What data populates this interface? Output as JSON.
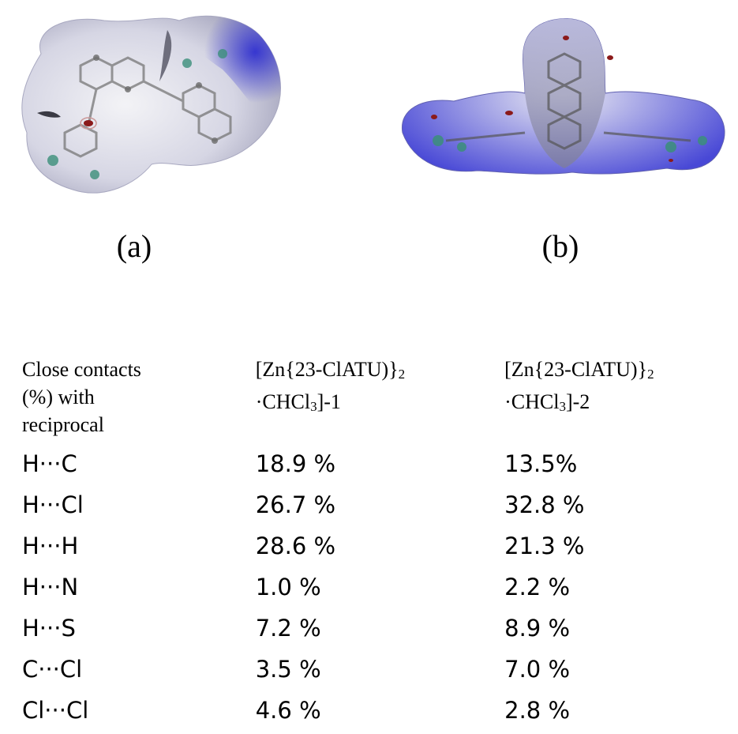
{
  "figures": [
    {
      "caption": "(a)"
    },
    {
      "caption": "(b)"
    }
  ],
  "table": {
    "header": {
      "label_lines": [
        "Close contacts",
        "(%) with",
        "reciprocal"
      ],
      "col1_lines": [
        "[Zn{23-ClATU)}",
        "·CHCl",
        "]-1"
      ],
      "col2_lines": [
        "[Zn{23-ClATU)}",
        "·CHCl",
        "]-2"
      ],
      "sub_2": "2",
      "sub_3": "3"
    },
    "rows": [
      {
        "contact": "H···C",
        "v1": "18.9 %",
        "v2": "13.5%"
      },
      {
        "contact": "H···Cl",
        "v1": "26.7 %",
        "v2": "32.8 %"
      },
      {
        "contact": "H···H",
        "v1": "28.6 %",
        "v2": "21.3 %"
      },
      {
        "contact": "H···N",
        "v1": "1.0 %",
        "v2": "2.2 %"
      },
      {
        "contact": "H···S",
        "v1": "7.2 %",
        "v2": "8.9 %"
      },
      {
        "contact": "C···Cl",
        "v1": "3.5 %",
        "v2": "7.0 %"
      },
      {
        "contact": "Cl···Cl",
        "v1": "4.6 %",
        "v2": "2.8 %"
      }
    ]
  },
  "colors": {
    "surface_white": "#f2f2f5",
    "surface_blue": "#3a3ad8",
    "surface_grey": "#b9b9c4",
    "spot_red": "#8b1a1a",
    "atom_grey": "#6b6b6b",
    "atom_green": "#3b8f7a"
  }
}
